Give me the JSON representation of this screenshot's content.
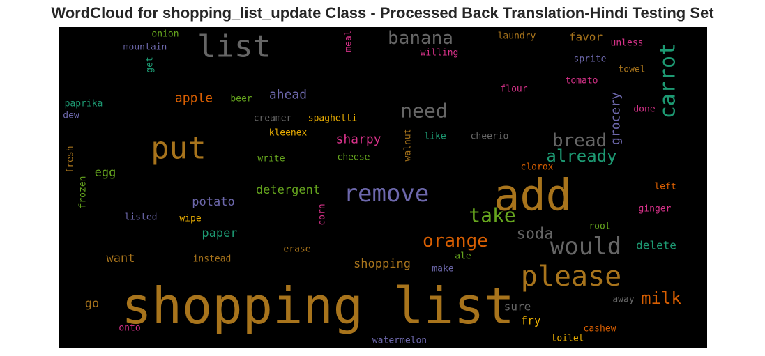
{
  "chart_data": {
    "type": "wordcloud",
    "title": "WordCloud for shopping_list_update Class - Processed Back Translation-Hindi Testing Set",
    "background": "#000000",
    "words": [
      {
        "text": "shopping list",
        "color": "#a8741c"
      },
      {
        "text": "add",
        "color": "#a8741c"
      },
      {
        "text": "put",
        "color": "#a8741c"
      },
      {
        "text": "remove",
        "color": "#6d68ac"
      },
      {
        "text": "list",
        "color": "#666666"
      },
      {
        "text": "please",
        "color": "#a8741c"
      },
      {
        "text": "would",
        "color": "#666666"
      },
      {
        "text": "carrot",
        "color": "#1d9a73"
      },
      {
        "text": "take",
        "color": "#66a61e"
      },
      {
        "text": "orange",
        "color": "#d95f02"
      },
      {
        "text": "need",
        "color": "#666666"
      },
      {
        "text": "banana",
        "color": "#666666"
      },
      {
        "text": "bread",
        "color": "#666666"
      },
      {
        "text": "already",
        "color": "#1d9a73"
      },
      {
        "text": "milk",
        "color": "#d95f02"
      },
      {
        "text": "soda",
        "color": "#666666"
      },
      {
        "text": "grocery",
        "color": "#6d68ac"
      },
      {
        "text": "apple",
        "color": "#d95f02"
      },
      {
        "text": "ahead",
        "color": "#6d68ac"
      },
      {
        "text": "sharpy",
        "color": "#d8328a"
      },
      {
        "text": "detergent",
        "color": "#66a61e"
      },
      {
        "text": "potato",
        "color": "#6d68ac"
      },
      {
        "text": "paper",
        "color": "#1d9a73"
      },
      {
        "text": "shopping",
        "color": "#a8741c"
      },
      {
        "text": "egg",
        "color": "#66a61e"
      },
      {
        "text": "want",
        "color": "#a8741c"
      },
      {
        "text": "delete",
        "color": "#1d9a73"
      },
      {
        "text": "favor",
        "color": "#a8741c"
      },
      {
        "text": "go",
        "color": "#a8741c"
      },
      {
        "text": "sure",
        "color": "#666666"
      },
      {
        "text": "fry",
        "color": "#e6ab02"
      },
      {
        "text": "meal",
        "color": "#d8328a"
      },
      {
        "text": "onion",
        "color": "#66a61e"
      },
      {
        "text": "mountain",
        "color": "#6d68ac"
      },
      {
        "text": "get",
        "color": "#1d9a73"
      },
      {
        "text": "laundry",
        "color": "#a8741c"
      },
      {
        "text": "willing",
        "color": "#d8328a"
      },
      {
        "text": "unless",
        "color": "#d8328a"
      },
      {
        "text": "sprite",
        "color": "#6d68ac"
      },
      {
        "text": "towel",
        "color": "#a8741c"
      },
      {
        "text": "tomato",
        "color": "#d8328a"
      },
      {
        "text": "flour",
        "color": "#d8328a"
      },
      {
        "text": "done",
        "color": "#d8328a"
      },
      {
        "text": "paprika",
        "color": "#1d9a73"
      },
      {
        "text": "dew",
        "color": "#6d68ac"
      },
      {
        "text": "beer",
        "color": "#66a61e"
      },
      {
        "text": "creamer",
        "color": "#666666"
      },
      {
        "text": "spaghetti",
        "color": "#e6ab02"
      },
      {
        "text": "kleenex",
        "color": "#e6ab02"
      },
      {
        "text": "walnut",
        "color": "#a8741c"
      },
      {
        "text": "like",
        "color": "#1d9a73"
      },
      {
        "text": "cheerio",
        "color": "#666666"
      },
      {
        "text": "fresh",
        "color": "#a8741c"
      },
      {
        "text": "write",
        "color": "#66a61e"
      },
      {
        "text": "cheese",
        "color": "#66a61e"
      },
      {
        "text": "clorox",
        "color": "#d95f02"
      },
      {
        "text": "frozen",
        "color": "#66a61e"
      },
      {
        "text": "left",
        "color": "#d95f02"
      },
      {
        "text": "listed",
        "color": "#6d68ac"
      },
      {
        "text": "wipe",
        "color": "#e6ab02"
      },
      {
        "text": "corn",
        "color": "#d8328a"
      },
      {
        "text": "ginger",
        "color": "#d8328a"
      },
      {
        "text": "root",
        "color": "#66a61e"
      },
      {
        "text": "erase",
        "color": "#a8741c"
      },
      {
        "text": "instead",
        "color": "#a8741c"
      },
      {
        "text": "ale",
        "color": "#66a61e"
      },
      {
        "text": "make",
        "color": "#6d68ac"
      },
      {
        "text": "away",
        "color": "#666666"
      },
      {
        "text": "onto",
        "color": "#d8328a"
      },
      {
        "text": "cashew",
        "color": "#d95f02"
      },
      {
        "text": "watermelon",
        "color": "#6d68ac"
      },
      {
        "text": "toilet",
        "color": "#e6ab02"
      }
    ]
  }
}
